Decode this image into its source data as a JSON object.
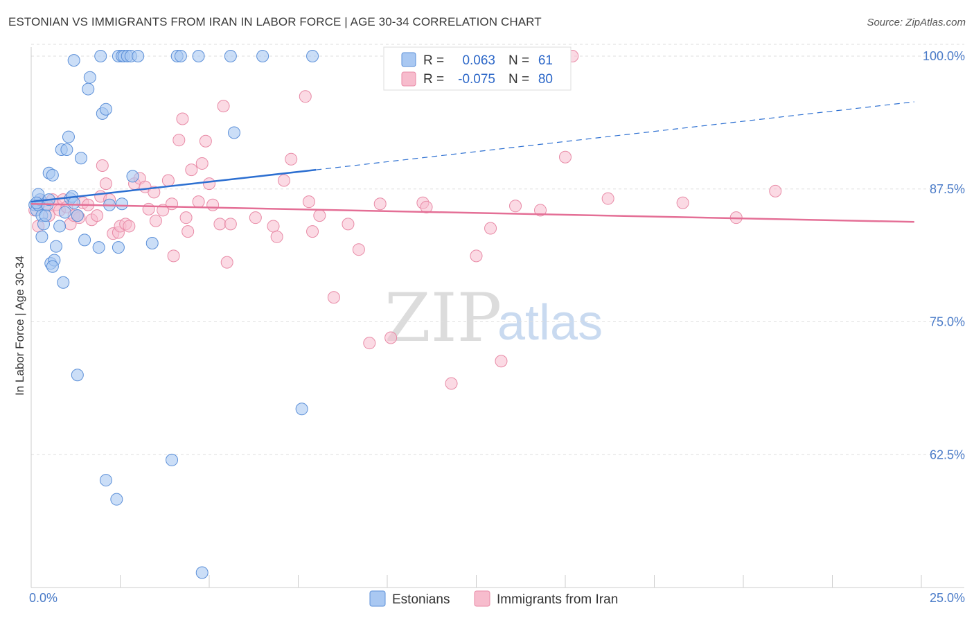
{
  "title": "ESTONIAN VS IMMIGRANTS FROM IRAN IN LABOR FORCE | AGE 30-34 CORRELATION CHART",
  "source": "Source: ZipAtlas.com",
  "watermark": {
    "zip": "ZIP",
    "atlas": "atlas"
  },
  "colors": {
    "estonians_fill": "#a9c8f2",
    "estonians_stroke": "#5b8fd8",
    "estonians_line": "#2c6fd1",
    "iran_fill": "#f7bccd",
    "iran_stroke": "#e88aa6",
    "iran_line": "#e46f96",
    "grid": "#dddddd",
    "tick_text": "#4a7bc8"
  },
  "legend": {
    "rows": [
      {
        "r_label": "R = ",
        "r_value": "0.063",
        "n_label": "N = ",
        "n_value": "61"
      },
      {
        "r_label": "R = ",
        "r_value": "-0.075",
        "n_label": "N = ",
        "n_value": "80"
      }
    ]
  },
  "chart_data": {
    "type": "scatter",
    "title": "ESTONIAN VS IMMIGRANTS FROM IRAN IN LABOR FORCE | AGE 30-34 CORRELATION CHART",
    "xlabel": "",
    "ylabel": "In Labor Force | Age 30-34",
    "xlim": [
      0,
      25
    ],
    "ylim": [
      50,
      101.5
    ],
    "x_ticks": [
      {
        "value": 0,
        "label": "0.0%"
      },
      {
        "value": 25,
        "label": "25.0%"
      }
    ],
    "y_ticks": [
      {
        "value": 100,
        "label": "100.0%"
      },
      {
        "value": 87.5,
        "label": "87.5%"
      },
      {
        "value": 75,
        "label": "75.0%"
      },
      {
        "value": 62.5,
        "label": "62.5%"
      }
    ],
    "grid": true,
    "legend_position": "bottom",
    "series": [
      {
        "name": "Estonians",
        "r": 0.063,
        "n": 61,
        "trend": {
          "x0": 0,
          "y0": 86.3,
          "x1": 8.0,
          "y1": 89.3,
          "dash_x1": 24.8,
          "dash_y1": 95.7
        },
        "points": [
          [
            0.1,
            86.0
          ],
          [
            0.15,
            85.5
          ],
          [
            0.2,
            86.0
          ],
          [
            0.25,
            86.5
          ],
          [
            0.2,
            87.0
          ],
          [
            0.3,
            85.0
          ],
          [
            0.35,
            84.2
          ],
          [
            0.3,
            83.0
          ],
          [
            0.4,
            85.0
          ],
          [
            0.45,
            86.0
          ],
          [
            0.5,
            86.5
          ],
          [
            0.5,
            89.0
          ],
          [
            0.6,
            88.8
          ],
          [
            0.55,
            80.5
          ],
          [
            0.65,
            80.8
          ],
          [
            0.6,
            80.2
          ],
          [
            0.7,
            82.1
          ],
          [
            0.8,
            84.0
          ],
          [
            0.9,
            78.7
          ],
          [
            0.95,
            85.3
          ],
          [
            0.85,
            91.2
          ],
          [
            1.0,
            91.2
          ],
          [
            1.05,
            92.4
          ],
          [
            1.1,
            86.6
          ],
          [
            1.15,
            86.8
          ],
          [
            1.2,
            86.2
          ],
          [
            1.3,
            85.0
          ],
          [
            1.4,
            90.4
          ],
          [
            1.5,
            82.7
          ],
          [
            1.6,
            96.9
          ],
          [
            1.65,
            98.0
          ],
          [
            1.2,
            99.6
          ],
          [
            1.9,
            82.0
          ],
          [
            2.0,
            94.6
          ],
          [
            2.1,
            95.0
          ],
          [
            2.2,
            86.0
          ],
          [
            1.95,
            100.0
          ],
          [
            2.45,
            100.0
          ],
          [
            2.55,
            100.0
          ],
          [
            2.6,
            100.0
          ],
          [
            2.7,
            100.0
          ],
          [
            2.8,
            100.0
          ],
          [
            3.0,
            100.0
          ],
          [
            2.45,
            82.0
          ],
          [
            2.55,
            86.1
          ],
          [
            2.85,
            88.7
          ],
          [
            3.4,
            82.4
          ],
          [
            4.1,
            100.0
          ],
          [
            4.2,
            100.0
          ],
          [
            4.7,
            100.0
          ],
          [
            5.6,
            100.0
          ],
          [
            5.7,
            92.8
          ],
          [
            6.5,
            100.0
          ],
          [
            7.9,
            100.0
          ],
          [
            1.3,
            70.0
          ],
          [
            7.6,
            66.8
          ],
          [
            3.95,
            62.0
          ],
          [
            2.1,
            60.1
          ],
          [
            2.4,
            58.3
          ],
          [
            4.8,
            51.4
          ],
          [
            0.15,
            86.2
          ]
        ]
      },
      {
        "name": "Immigrants from Iran",
        "r": -0.075,
        "n": 80,
        "trend": {
          "x0": 0,
          "y0": 86.1,
          "x1": 24.8,
          "y1": 84.4
        },
        "points": [
          [
            0.1,
            85.5
          ],
          [
            0.2,
            84.0
          ],
          [
            0.3,
            86.3
          ],
          [
            0.4,
            86.0
          ],
          [
            0.5,
            85.0
          ],
          [
            0.6,
            86.5
          ],
          [
            0.7,
            86.0
          ],
          [
            0.8,
            85.5
          ],
          [
            0.9,
            86.5
          ],
          [
            1.0,
            85.8
          ],
          [
            1.1,
            84.2
          ],
          [
            1.2,
            85.0
          ],
          [
            1.35,
            84.8
          ],
          [
            1.45,
            86.2
          ],
          [
            1.6,
            86.0
          ],
          [
            1.7,
            84.6
          ],
          [
            1.85,
            85.0
          ],
          [
            1.95,
            86.8
          ],
          [
            2.0,
            89.7
          ],
          [
            2.1,
            88.0
          ],
          [
            2.2,
            86.5
          ],
          [
            2.3,
            83.3
          ],
          [
            2.45,
            83.4
          ],
          [
            2.5,
            84.0
          ],
          [
            2.65,
            84.2
          ],
          [
            2.75,
            84.0
          ],
          [
            2.9,
            88.0
          ],
          [
            3.05,
            88.5
          ],
          [
            3.2,
            87.7
          ],
          [
            3.3,
            85.6
          ],
          [
            3.45,
            87.2
          ],
          [
            3.5,
            84.5
          ],
          [
            3.7,
            85.5
          ],
          [
            3.85,
            88.3
          ],
          [
            3.95,
            86.1
          ],
          [
            4.0,
            81.2
          ],
          [
            4.15,
            92.1
          ],
          [
            4.25,
            94.1
          ],
          [
            4.35,
            84.8
          ],
          [
            4.4,
            83.5
          ],
          [
            4.5,
            89.3
          ],
          [
            4.7,
            86.3
          ],
          [
            4.8,
            89.9
          ],
          [
            4.9,
            92.0
          ],
          [
            5.0,
            88.0
          ],
          [
            5.1,
            86.0
          ],
          [
            5.3,
            84.2
          ],
          [
            5.4,
            95.3
          ],
          [
            5.5,
            80.6
          ],
          [
            5.6,
            84.2
          ],
          [
            6.3,
            84.8
          ],
          [
            6.8,
            84.0
          ],
          [
            6.9,
            83.0
          ],
          [
            7.1,
            88.3
          ],
          [
            7.3,
            90.3
          ],
          [
            7.7,
            96.2
          ],
          [
            7.8,
            86.3
          ],
          [
            7.9,
            83.5
          ],
          [
            8.1,
            85.0
          ],
          [
            8.5,
            77.3
          ],
          [
            8.9,
            84.2
          ],
          [
            9.2,
            81.8
          ],
          [
            9.5,
            73.0
          ],
          [
            9.8,
            86.1
          ],
          [
            10.1,
            73.5
          ],
          [
            11.0,
            86.2
          ],
          [
            11.1,
            85.8
          ],
          [
            11.8,
            69.2
          ],
          [
            12.5,
            81.2
          ],
          [
            12.9,
            83.8
          ],
          [
            13.2,
            71.3
          ],
          [
            13.6,
            85.9
          ],
          [
            14.3,
            85.5
          ],
          [
            15.0,
            90.5
          ],
          [
            15.2,
            100.0
          ],
          [
            16.2,
            86.6
          ],
          [
            18.3,
            86.2
          ],
          [
            19.8,
            84.8
          ],
          [
            20.9,
            87.3
          ],
          [
            1.3,
            85.0
          ]
        ]
      }
    ]
  }
}
